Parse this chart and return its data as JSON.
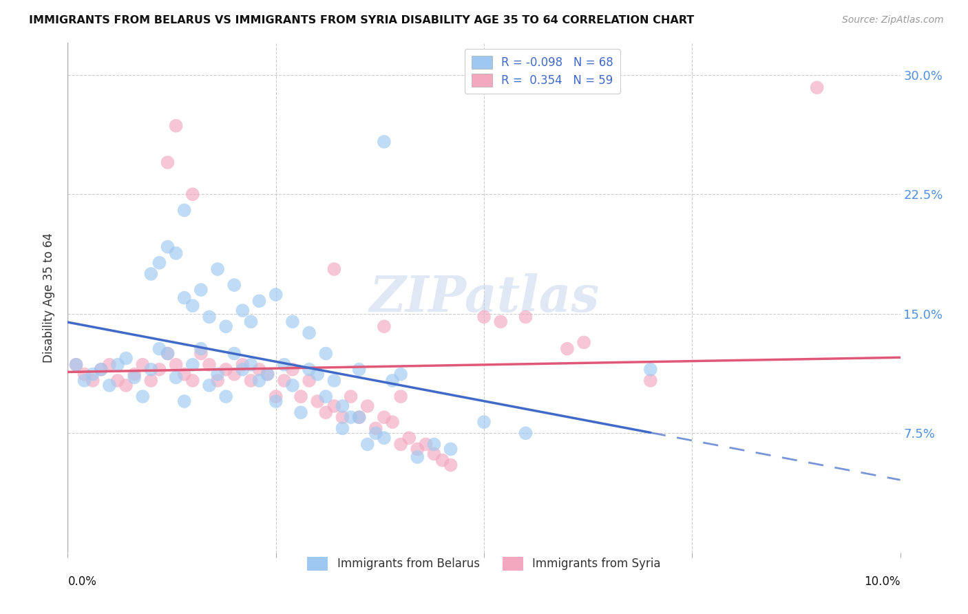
{
  "title": "IMMIGRANTS FROM BELARUS VS IMMIGRANTS FROM SYRIA DISABILITY AGE 35 TO 64 CORRELATION CHART",
  "source": "Source: ZipAtlas.com",
  "ylabel": "Disability Age 35 to 64",
  "ytick_labels": [
    "7.5%",
    "15.0%",
    "22.5%",
    "30.0%"
  ],
  "ytick_values": [
    0.075,
    0.15,
    0.225,
    0.3
  ],
  "xlim": [
    0.0,
    0.1
  ],
  "ylim": [
    0.0,
    0.32
  ],
  "legend_r_belarus": "-0.098",
  "legend_n_belarus": "68",
  "legend_r_syria": "0.354",
  "legend_n_syria": "59",
  "color_belarus": "#9ec8f0",
  "color_syria": "#f4a8c0",
  "color_trend_belarus": "#4169c8",
  "color_trend_syria": "#e05878",
  "watermark_text": "ZIPatlas",
  "belarus_x": [
    0.001,
    0.002,
    0.003,
    0.004,
    0.005,
    0.006,
    0.007,
    0.008,
    0.009,
    0.01,
    0.011,
    0.012,
    0.013,
    0.014,
    0.015,
    0.016,
    0.017,
    0.018,
    0.019,
    0.02,
    0.021,
    0.022,
    0.023,
    0.024,
    0.025,
    0.026,
    0.027,
    0.028,
    0.029,
    0.03,
    0.031,
    0.032,
    0.033,
    0.034,
    0.035,
    0.036,
    0.037,
    0.038,
    0.039,
    0.04,
    0.014,
    0.016,
    0.018,
    0.02,
    0.022,
    0.01,
    0.011,
    0.012,
    0.013,
    0.014,
    0.015,
    0.017,
    0.019,
    0.021,
    0.023,
    0.025,
    0.027,
    0.029,
    0.031,
    0.033,
    0.035,
    0.038,
    0.042,
    0.044,
    0.046,
    0.05,
    0.055,
    0.07
  ],
  "belarus_y": [
    0.118,
    0.108,
    0.112,
    0.115,
    0.105,
    0.118,
    0.122,
    0.11,
    0.098,
    0.115,
    0.128,
    0.125,
    0.11,
    0.095,
    0.118,
    0.128,
    0.105,
    0.112,
    0.098,
    0.125,
    0.115,
    0.118,
    0.108,
    0.112,
    0.095,
    0.118,
    0.105,
    0.088,
    0.115,
    0.112,
    0.098,
    0.108,
    0.078,
    0.085,
    0.115,
    0.068,
    0.075,
    0.072,
    0.108,
    0.112,
    0.16,
    0.165,
    0.178,
    0.168,
    0.145,
    0.175,
    0.182,
    0.192,
    0.188,
    0.215,
    0.155,
    0.148,
    0.142,
    0.152,
    0.158,
    0.162,
    0.145,
    0.138,
    0.125,
    0.092,
    0.085,
    0.258,
    0.06,
    0.068,
    0.065,
    0.082,
    0.075,
    0.115
  ],
  "syria_x": [
    0.001,
    0.003,
    0.005,
    0.007,
    0.009,
    0.011,
    0.013,
    0.015,
    0.017,
    0.019,
    0.021,
    0.023,
    0.025,
    0.027,
    0.029,
    0.031,
    0.033,
    0.035,
    0.037,
    0.039,
    0.002,
    0.004,
    0.006,
    0.008,
    0.01,
    0.012,
    0.014,
    0.016,
    0.018,
    0.02,
    0.022,
    0.024,
    0.026,
    0.028,
    0.03,
    0.032,
    0.034,
    0.036,
    0.038,
    0.012,
    0.013,
    0.015,
    0.032,
    0.038,
    0.04,
    0.05,
    0.052,
    0.055,
    0.06,
    0.062,
    0.07,
    0.04,
    0.041,
    0.042,
    0.043,
    0.044,
    0.045,
    0.046,
    0.09
  ],
  "syria_y": [
    0.118,
    0.108,
    0.118,
    0.105,
    0.118,
    0.115,
    0.118,
    0.108,
    0.118,
    0.115,
    0.118,
    0.115,
    0.098,
    0.115,
    0.108,
    0.088,
    0.085,
    0.085,
    0.078,
    0.082,
    0.112,
    0.115,
    0.108,
    0.112,
    0.108,
    0.125,
    0.112,
    0.125,
    0.108,
    0.112,
    0.108,
    0.112,
    0.108,
    0.098,
    0.095,
    0.092,
    0.098,
    0.092,
    0.085,
    0.245,
    0.268,
    0.225,
    0.178,
    0.142,
    0.098,
    0.148,
    0.145,
    0.148,
    0.128,
    0.132,
    0.108,
    0.068,
    0.072,
    0.065,
    0.068,
    0.062,
    0.058,
    0.055,
    0.292
  ]
}
